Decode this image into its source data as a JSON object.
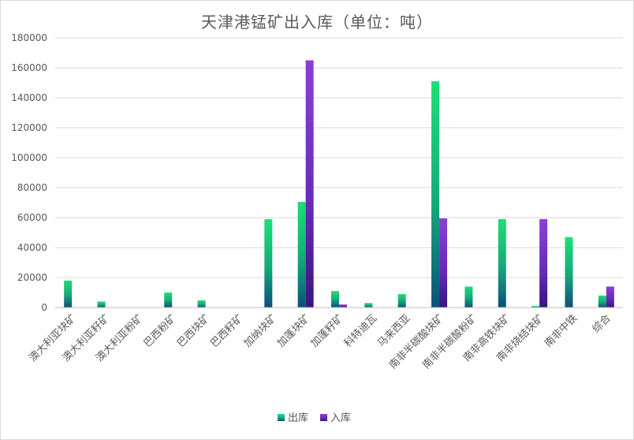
{
  "chart_data": {
    "type": "bar",
    "title": "天津港锰矿出入库（单位：吨）",
    "categories": [
      "澳大利亚块矿",
      "澳大利亚籽矿",
      "澳大利亚粉矿",
      "巴西粉矿",
      "巴西块矿",
      "巴西籽矿",
      "加纳块矿",
      "加蓬块矿",
      "加蓬籽矿",
      "科特迪瓦",
      "马来西亚",
      "南非半碳酸块矿",
      "南非半碳酸粉矿",
      "南非高铁块矿",
      "南非烧结块矿",
      "南非中铁",
      "综合"
    ],
    "series": [
      {
        "name": "出库",
        "values": [
          18000,
          4000,
          0,
          10000,
          4800,
          0,
          59000,
          70500,
          11000,
          3000,
          9000,
          151000,
          14000,
          59000,
          1000,
          47000,
          8000
        ]
      },
      {
        "name": "入库",
        "values": [
          0,
          0,
          0,
          0,
          0,
          0,
          0,
          165000,
          2000,
          0,
          0,
          59500,
          0,
          0,
          59000,
          0,
          14000
        ]
      }
    ],
    "ylim": [
      0,
      180000
    ],
    "yticks": [
      0,
      20000,
      40000,
      60000,
      80000,
      100000,
      120000,
      140000,
      160000,
      180000
    ],
    "grid": true,
    "legend_position": "bottom",
    "colors": {
      "out_top": "#1ddf74",
      "out_bottom": "#0c4f7a",
      "in_top": "#8a3fd6",
      "in_bottom": "#3a1580",
      "grid": "#d9d9d9",
      "axis": "#bfbfbf"
    }
  }
}
